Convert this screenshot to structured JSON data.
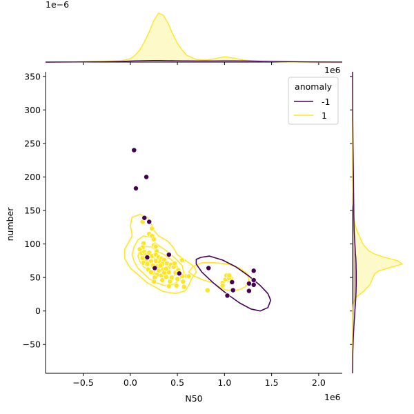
{
  "chart_data": {
    "type": "scatter",
    "subtype": "jointplot-kde",
    "xlabel": "N50",
    "ylabel": "number",
    "x_offset_label": "1e6",
    "y_offset_label": "",
    "top_marginal_offset_label": "1e−6",
    "right_marginal_offset_label": "1e6",
    "xlim": [
      -0.9,
      2.25
    ],
    "ylim": [
      -93,
      357
    ],
    "xticks": [
      -0.5,
      0.0,
      0.5,
      1.0,
      1.5,
      2.0
    ],
    "xtick_labels": [
      "−0.5",
      "0.0",
      "0.5",
      "1.0",
      "1.5",
      "2.0"
    ],
    "yticks": [
      -50,
      0,
      50,
      100,
      150,
      200,
      250,
      300,
      350
    ],
    "ytick_labels": [
      "−50",
      "0",
      "50",
      "100",
      "150",
      "200",
      "250",
      "300",
      "350"
    ],
    "grid": false,
    "legend": {
      "title": "anomaly",
      "placement": "top-right",
      "entries": [
        {
          "label": "-1",
          "color": "#440154"
        },
        {
          "label": "1",
          "color": "#fde725"
        }
      ]
    },
    "series": [
      {
        "name": "-1",
        "color": "#440154",
        "points": [
          [
            0.04,
            240
          ],
          [
            0.06,
            183
          ],
          [
            0.17,
            200
          ],
          [
            0.15,
            139
          ],
          [
            0.2,
            133
          ],
          [
            0.18,
            80
          ],
          [
            0.41,
            84
          ],
          [
            0.26,
            64
          ],
          [
            0.52,
            56
          ],
          [
            0.83,
            64
          ],
          [
            1.03,
            23
          ],
          [
            1.08,
            43
          ],
          [
            1.09,
            31
          ],
          [
            1.26,
            41
          ],
          [
            1.26,
            30
          ],
          [
            1.31,
            60
          ],
          [
            1.31,
            46
          ],
          [
            1.31,
            39
          ]
        ]
      },
      {
        "name": "1",
        "color": "#fde725",
        "points": [
          [
            0.13,
            133
          ],
          [
            0.2,
            115
          ],
          [
            0.23,
            112
          ],
          [
            0.23,
            123
          ],
          [
            0.25,
            107
          ],
          [
            0.25,
            98
          ],
          [
            0.27,
            96
          ],
          [
            0.28,
            89
          ],
          [
            0.14,
            101
          ],
          [
            0.13,
            95
          ],
          [
            0.1,
            92
          ],
          [
            0.12,
            86
          ],
          [
            0.15,
            88
          ],
          [
            0.17,
            84
          ],
          [
            0.2,
            87
          ],
          [
            0.23,
            82
          ],
          [
            0.27,
            84
          ],
          [
            0.3,
            80
          ],
          [
            0.33,
            78
          ],
          [
            0.36,
            76
          ],
          [
            0.31,
            74
          ],
          [
            0.27,
            75
          ],
          [
            0.22,
            74
          ],
          [
            0.16,
            76
          ],
          [
            0.13,
            79
          ],
          [
            0.14,
            72
          ],
          [
            0.18,
            70
          ],
          [
            0.24,
            68
          ],
          [
            0.29,
            67
          ],
          [
            0.34,
            70
          ],
          [
            0.39,
            71
          ],
          [
            0.43,
            69
          ],
          [
            0.46,
            66
          ],
          [
            0.4,
            64
          ],
          [
            0.35,
            62
          ],
          [
            0.3,
            60
          ],
          [
            0.24,
            57
          ],
          [
            0.19,
            62
          ],
          [
            0.22,
            58
          ],
          [
            0.28,
            54
          ],
          [
            0.33,
            53
          ],
          [
            0.38,
            51
          ],
          [
            0.44,
            50
          ],
          [
            0.5,
            48
          ],
          [
            0.55,
            52
          ],
          [
            0.48,
            57
          ],
          [
            0.41,
            58
          ],
          [
            0.36,
            57
          ],
          [
            0.26,
            50
          ],
          [
            0.25,
            44
          ],
          [
            0.34,
            46
          ],
          [
            0.42,
            44
          ],
          [
            0.56,
            44
          ],
          [
            0.6,
            52
          ],
          [
            0.57,
            36
          ],
          [
            0.49,
            38
          ],
          [
            0.41,
            37
          ],
          [
            0.55,
            76
          ],
          [
            0.32,
            68
          ],
          [
            0.62,
            52
          ],
          [
            0.82,
            31
          ],
          [
            0.98,
            42
          ],
          [
            0.98,
            38
          ],
          [
            1.01,
            47
          ],
          [
            1.02,
            53
          ],
          [
            1.05,
            49
          ],
          [
            1.05,
            53
          ],
          [
            0.38,
            63
          ],
          [
            0.47,
            71
          ],
          [
            0.51,
            61
          ]
        ]
      }
    ],
    "kde_contours": [
      {
        "series": "1",
        "color": "#fde725",
        "paths": [
          [
            [
              0.0,
              128
            ],
            [
              0.02,
              140
            ],
            [
              0.1,
              144
            ],
            [
              0.18,
              140
            ],
            [
              0.22,
              132
            ],
            [
              0.24,
              122
            ],
            [
              0.3,
              112
            ],
            [
              0.4,
              104
            ],
            [
              0.45,
              96
            ],
            [
              0.5,
              84
            ],
            [
              0.6,
              74
            ],
            [
              0.68,
              66
            ],
            [
              0.7,
              58
            ],
            [
              0.65,
              48
            ],
            [
              0.62,
              38
            ],
            [
              0.58,
              30
            ],
            [
              0.48,
              26
            ],
            [
              0.35,
              29
            ],
            [
              0.26,
              36
            ],
            [
              0.18,
              42
            ],
            [
              0.1,
              52
            ],
            [
              0.0,
              64
            ],
            [
              -0.06,
              78
            ],
            [
              -0.06,
              92
            ],
            [
              -0.02,
              102
            ],
            [
              0.02,
              112
            ],
            [
              0.0,
              128
            ]
          ],
          [
            [
              0.62,
              58
            ],
            [
              0.66,
              66
            ],
            [
              0.76,
              72
            ],
            [
              0.9,
              72
            ],
            [
              1.04,
              70
            ],
            [
              1.16,
              64
            ],
            [
              1.24,
              56
            ],
            [
              1.26,
              46
            ],
            [
              1.22,
              36
            ],
            [
              1.16,
              32
            ],
            [
              1.08,
              30
            ],
            [
              1.0,
              32
            ],
            [
              0.94,
              36
            ],
            [
              0.88,
              42
            ],
            [
              0.78,
              46
            ],
            [
              0.68,
              52
            ],
            [
              0.62,
              58
            ]
          ],
          [
            [
              0.04,
              96
            ],
            [
              0.08,
              106
            ],
            [
              0.14,
              112
            ],
            [
              0.22,
              110
            ],
            [
              0.26,
              102
            ],
            [
              0.32,
              96
            ],
            [
              0.4,
              88
            ],
            [
              0.48,
              78
            ],
            [
              0.55,
              68
            ],
            [
              0.57,
              56
            ],
            [
              0.52,
              46
            ],
            [
              0.46,
              40
            ],
            [
              0.36,
              38
            ],
            [
              0.28,
              42
            ],
            [
              0.2,
              48
            ],
            [
              0.14,
              56
            ],
            [
              0.08,
              64
            ],
            [
              0.04,
              74
            ],
            [
              0.02,
              84
            ],
            [
              0.04,
              96
            ]
          ],
          [
            [
              0.1,
              90
            ],
            [
              0.16,
              96
            ],
            [
              0.22,
              96
            ],
            [
              0.28,
              90
            ],
            [
              0.36,
              84
            ],
            [
              0.44,
              76
            ],
            [
              0.5,
              66
            ],
            [
              0.5,
              56
            ],
            [
              0.44,
              50
            ],
            [
              0.36,
              50
            ],
            [
              0.28,
              54
            ],
            [
              0.2,
              60
            ],
            [
              0.14,
              66
            ],
            [
              0.1,
              74
            ],
            [
              0.08,
              82
            ],
            [
              0.1,
              90
            ]
          ],
          [
            [
              0.14,
              82
            ],
            [
              0.2,
              86
            ],
            [
              0.26,
              84
            ],
            [
              0.32,
              78
            ],
            [
              0.38,
              72
            ],
            [
              0.42,
              66
            ],
            [
              0.4,
              60
            ],
            [
              0.34,
              58
            ],
            [
              0.26,
              62
            ],
            [
              0.2,
              68
            ],
            [
              0.16,
              74
            ],
            [
              0.14,
              82
            ]
          ],
          [
            [
              0.18,
              78
            ],
            [
              0.24,
              80
            ],
            [
              0.3,
              76
            ],
            [
              0.34,
              70
            ],
            [
              0.32,
              66
            ],
            [
              0.26,
              67
            ],
            [
              0.2,
              71
            ],
            [
              0.18,
              78
            ]
          ],
          [
            [
              1.0,
              48
            ],
            [
              1.03,
              54
            ],
            [
              1.07,
              54
            ],
            [
              1.08,
              48
            ],
            [
              1.05,
              44
            ],
            [
              1.01,
              45
            ],
            [
              1.0,
              48
            ]
          ]
        ]
      },
      {
        "series": "-1",
        "color": "#440154",
        "paths": [
          [
            [
              0.7,
              77
            ],
            [
              0.75,
              80
            ],
            [
              0.84,
              82
            ],
            [
              0.98,
              76
            ],
            [
              1.12,
              66
            ],
            [
              1.26,
              52
            ],
            [
              1.38,
              38
            ],
            [
              1.46,
              26
            ],
            [
              1.49,
              16
            ],
            [
              1.46,
              5
            ],
            [
              1.38,
              0
            ],
            [
              1.28,
              3
            ],
            [
              1.16,
              12
            ],
            [
              1.02,
              26
            ],
            [
              0.88,
              42
            ],
            [
              0.76,
              58
            ],
            [
              0.7,
              70
            ],
            [
              0.7,
              77
            ]
          ]
        ]
      }
    ],
    "marginal_x": {
      "x": [
        -0.9,
        -0.6,
        -0.3,
        -0.1,
        0.0,
        0.05,
        0.1,
        0.15,
        0.2,
        0.25,
        0.3,
        0.35,
        0.4,
        0.45,
        0.5,
        0.55,
        0.6,
        0.7,
        0.8,
        0.9,
        1.0,
        1.1,
        1.2,
        1.4,
        1.6,
        1.8,
        2.0,
        2.25
      ],
      "series": [
        {
          "name": "1",
          "color": "#fde725",
          "density": [
            0.0,
            0.002,
            0.01,
            0.02,
            0.05,
            0.1,
            0.18,
            0.3,
            0.45,
            0.62,
            0.73,
            0.7,
            0.58,
            0.42,
            0.28,
            0.18,
            0.1,
            0.04,
            0.03,
            0.05,
            0.08,
            0.06,
            0.03,
            0.01,
            0.004,
            0.001,
            0.0,
            0.0
          ]
        },
        {
          "name": "-1",
          "color": "#440154",
          "density": [
            0.0,
            0.002,
            0.006,
            0.01,
            0.015,
            0.018,
            0.02,
            0.022,
            0.023,
            0.024,
            0.024,
            0.023,
            0.022,
            0.021,
            0.02,
            0.019,
            0.018,
            0.017,
            0.017,
            0.017,
            0.018,
            0.018,
            0.017,
            0.013,
            0.008,
            0.004,
            0.002,
            0.001
          ]
        }
      ]
    },
    "marginal_y": {
      "y": [
        -93,
        -60,
        -40,
        -20,
        0,
        10,
        20,
        30,
        40,
        50,
        55,
        60,
        65,
        70,
        75,
        80,
        85,
        90,
        100,
        110,
        120,
        130,
        140,
        160,
        200,
        250,
        300,
        357
      ],
      "series": [
        {
          "name": "1",
          "color": "#fde725",
          "density": [
            0.0,
            0.0,
            0.0,
            0.0,
            0.0,
            0.003,
            0.02,
            0.08,
            0.12,
            0.14,
            0.15,
            0.18,
            0.26,
            0.34,
            0.31,
            0.22,
            0.15,
            0.11,
            0.07,
            0.05,
            0.03,
            0.015,
            0.008,
            0.002,
            0.0,
            0.0,
            0.0,
            0.0
          ]
        },
        {
          "name": "-1",
          "color": "#440154",
          "density": [
            0.0,
            0.002,
            0.005,
            0.01,
            0.016,
            0.02,
            0.022,
            0.024,
            0.025,
            0.025,
            0.025,
            0.025,
            0.024,
            0.024,
            0.023,
            0.022,
            0.02,
            0.019,
            0.016,
            0.013,
            0.011,
            0.01,
            0.009,
            0.008,
            0.006,
            0.003,
            0.001,
            0.0
          ]
        }
      ]
    }
  }
}
